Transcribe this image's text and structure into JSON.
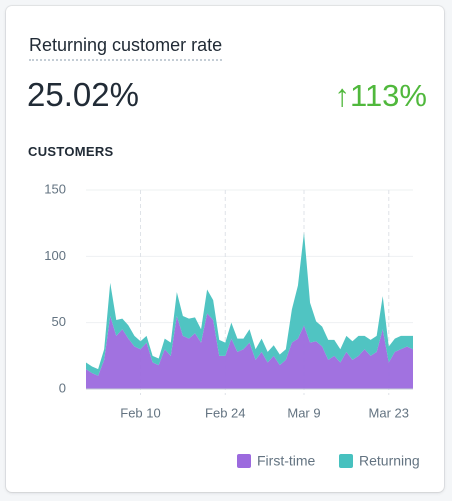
{
  "card": {
    "title": "Returning customer rate",
    "value": "25.02%",
    "change": "↑113%"
  },
  "chart_data": {
    "type": "area",
    "stacked": true,
    "title": "CUSTOMERS",
    "categories": [
      null,
      null,
      null,
      null,
      null,
      null,
      null,
      null,
      null,
      "Feb 10",
      null,
      null,
      null,
      null,
      null,
      null,
      null,
      null,
      null,
      null,
      null,
      null,
      null,
      "Feb 24",
      null,
      null,
      null,
      null,
      null,
      null,
      null,
      null,
      null,
      null,
      null,
      null,
      "Mar 9",
      null,
      null,
      null,
      null,
      null,
      null,
      null,
      null,
      null,
      null,
      null,
      null,
      null,
      "Mar 23",
      null,
      null,
      null,
      null
    ],
    "series": [
      {
        "name": "First-time",
        "color": "#9c6ade",
        "values": [
          15,
          12,
          10,
          22,
          55,
          40,
          45,
          38,
          32,
          30,
          35,
          20,
          18,
          30,
          25,
          55,
          40,
          38,
          42,
          35,
          57,
          52,
          25,
          25,
          38,
          28,
          30,
          35,
          22,
          28,
          20,
          25,
          18,
          22,
          35,
          38,
          48,
          35,
          36,
          32,
          22,
          25,
          20,
          28,
          22,
          25,
          30,
          25,
          28,
          45,
          20,
          28,
          30,
          32,
          30
        ]
      },
      {
        "name": "Returning",
        "color": "#47c1bf",
        "values": [
          5,
          5,
          5,
          8,
          25,
          12,
          8,
          10,
          8,
          6,
          5,
          5,
          5,
          8,
          10,
          18,
          15,
          15,
          12,
          10,
          18,
          15,
          12,
          10,
          12,
          10,
          8,
          10,
          8,
          10,
          8,
          8,
          8,
          8,
          25,
          40,
          70,
          30,
          15,
          15,
          15,
          12,
          10,
          12,
          14,
          15,
          10,
          12,
          12,
          25,
          12,
          10,
          10,
          8,
          10
        ]
      }
    ],
    "ylim": [
      0,
      150
    ],
    "yticks": [
      0,
      50,
      100,
      150
    ],
    "grid": true,
    "legend": "bottom-right"
  }
}
